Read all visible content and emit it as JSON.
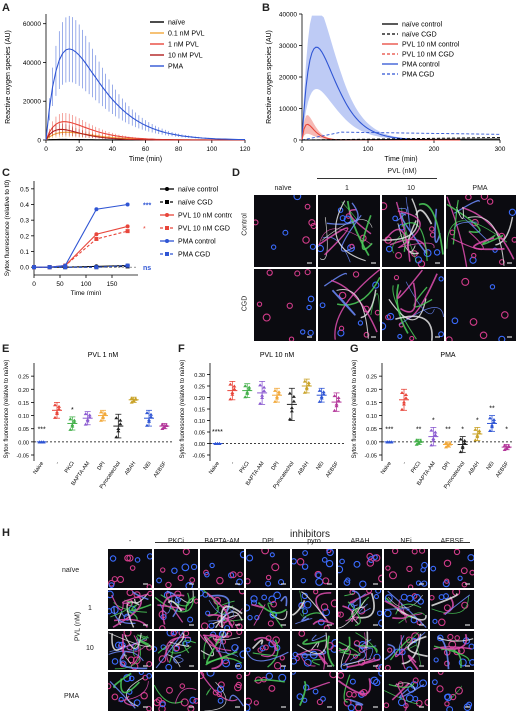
{
  "panel_labels": {
    "A": "A",
    "B": "B",
    "C": "C",
    "D": "D",
    "E": "E",
    "F": "F",
    "G": "G",
    "H": "H"
  },
  "colors": {
    "black": "#000000",
    "orange": "#f2a93b",
    "red": "#e8463b",
    "darkred": "#b01e1e",
    "blue": "#2f55d4",
    "lightblue": "#a8b9f2",
    "purple": "#8b5bd1",
    "green": "#43b04a",
    "gold": "#c9a227",
    "teal": "#3a9f8c",
    "magenta": "#b4379a"
  },
  "chart_data": [
    {
      "id": "A",
      "type": "line",
      "ylabel": "Reactive oxygen species (AU)",
      "xlabel": "Time (min)",
      "xlim": [
        0,
        120
      ],
      "ylim": [
        0,
        65000
      ],
      "xticks": [
        "0",
        "20",
        "40",
        "60",
        "80",
        "100",
        "120"
      ],
      "yticks": [
        "0",
        "20000",
        "40000",
        "60000"
      ],
      "legend": [
        "naïve",
        "0.1 nM PVL",
        "1 nM PVL",
        "10 nM PVL",
        "PMA"
      ],
      "series": [
        {
          "name": "naïve",
          "color": "#000000",
          "peak": 300,
          "tpeak": 10,
          "err": 300
        },
        {
          "name": "0.1 nM PVL",
          "color": "#f2a93b",
          "peak": 4000,
          "tpeak": 12,
          "err": 2500
        },
        {
          "name": "1 nM PVL",
          "color": "#e8463b",
          "peak": 9500,
          "tpeak": 11,
          "err": 4500
        },
        {
          "name": "10 nM PVL",
          "color": "#b01e1e",
          "peak": 5500,
          "tpeak": 9,
          "err": 3000
        },
        {
          "name": "PMA",
          "color": "#2f55d4",
          "peak": 47000,
          "tpeak": 14,
          "err": 17000
        }
      ]
    },
    {
      "id": "B",
      "type": "line",
      "ylabel": "Reactive oxygen species (AU)",
      "xlabel": "Time (min)",
      "xlim": [
        0,
        300
      ],
      "ylim": [
        0,
        40000
      ],
      "xticks": [
        "0",
        "100",
        "200",
        "300"
      ],
      "yticks": [
        "0",
        "10000",
        "20000",
        "30000",
        "40000"
      ],
      "legend": [
        "naïve control",
        "naïve CGD",
        "PVL 10 nM control",
        "PVL 10 nM CGD",
        "PMA control",
        "PMA CGD"
      ]
    },
    {
      "id": "C",
      "type": "line",
      "ylabel": "Sytox fluorescence (relative to t0)",
      "xlabel": "Time (min)",
      "xlim": [
        0,
        200
      ],
      "ylim": [
        -0.05,
        0.55
      ],
      "xticks": [
        "0",
        "50",
        "100",
        "150"
      ],
      "yticks": [
        "0.0",
        "0.1",
        "0.2",
        "0.3",
        "0.4",
        "0.5"
      ],
      "x": [
        0,
        30,
        60,
        120,
        180
      ],
      "series": [
        {
          "name": "naïve control",
          "color": "#000000",
          "dash": false,
          "values": [
            0,
            0,
            0,
            0.005,
            0.01
          ]
        },
        {
          "name": "naïve CGD",
          "color": "#000000",
          "dash": true,
          "values": [
            0,
            0,
            0,
            0,
            0.005
          ]
        },
        {
          "name": "PVL 10 nM control",
          "color": "#e8463b",
          "dash": false,
          "values": [
            0,
            0,
            0.01,
            0.21,
            0.26
          ]
        },
        {
          "name": "PVL 10 nM CGD",
          "color": "#e8463b",
          "dash": true,
          "values": [
            0,
            0,
            0.01,
            0.18,
            0.23
          ]
        },
        {
          "name": "PMA control",
          "color": "#2f55d4",
          "dash": false,
          "values": [
            0,
            0,
            0.01,
            0.37,
            0.4
          ]
        },
        {
          "name": "PMA CGD",
          "color": "#2f55d4",
          "dash": true,
          "values": [
            0,
            0,
            0,
            0,
            0.01
          ]
        }
      ],
      "annotations": [
        "***",
        "*",
        "ns"
      ]
    },
    {
      "id": "E",
      "type": "scatter",
      "title": "PVL 1 nM",
      "ylabel": "Sytox fluorescence (relative to naïve)",
      "ylim": [
        -0.05,
        0.3
      ],
      "yticks": [
        "-0.05",
        "0.00",
        "0.05",
        "0.10",
        "0.15",
        "0.20",
        "0.25"
      ],
      "categories": [
        "Naive",
        "-",
        "PKCi",
        "BAPTA-AM",
        "DPI",
        "Pyrocatechol",
        "ABAH",
        "NEi",
        "AEBSF"
      ],
      "means": [
        0.0,
        0.12,
        0.07,
        0.09,
        0.1,
        0.06,
        0.16,
        0.09,
        0.06
      ],
      "sds": [
        0.0,
        0.03,
        0.025,
        0.025,
        0.02,
        0.045,
        0.01,
        0.03,
        0.01
      ],
      "stars": [
        "***",
        "",
        "*",
        "",
        "",
        "",
        "",
        "",
        ""
      ]
    },
    {
      "id": "F",
      "type": "scatter",
      "title": "PVL 10 nM",
      "ylabel": "Sytox fluorescence (relative to naïve)",
      "ylim": [
        -0.05,
        0.35
      ],
      "yticks": [
        "-0.05",
        "0.00",
        "0.05",
        "0.10",
        "0.15",
        "0.20",
        "0.25",
        "0.30"
      ],
      "categories": [
        "Naive",
        "-",
        "PKCi",
        "BAPTA-AM",
        "DPI",
        "Pyrocatechol",
        "ABAH",
        "NEi",
        "AEBSF"
      ],
      "means": [
        0.0,
        0.23,
        0.23,
        0.22,
        0.21,
        0.17,
        0.25,
        0.21,
        0.18
      ],
      "sds": [
        0.0,
        0.04,
        0.03,
        0.05,
        0.03,
        0.07,
        0.03,
        0.03,
        0.04
      ],
      "stars": [
        "****",
        "",
        "",
        "",
        "",
        "",
        "",
        "",
        ""
      ]
    },
    {
      "id": "G",
      "type": "scatter",
      "title": "PMA",
      "ylabel": "Sytox fluorescence (relative to naïve)",
      "ylim": [
        -0.05,
        0.3
      ],
      "yticks": [
        "-0.05",
        "0.00",
        "0.05",
        "0.10",
        "0.15",
        "0.20",
        "0.25"
      ],
      "categories": [
        "Naive",
        "-",
        "PKCi",
        "BAPTA-AM",
        "DPI",
        "Pyrocatechol",
        "ABAH",
        "NEi",
        "AEBSF"
      ],
      "means": [
        0.0,
        0.16,
        0.0,
        0.02,
        -0.01,
        -0.01,
        0.03,
        0.07,
        -0.02
      ],
      "sds": [
        0.0,
        0.04,
        0.01,
        0.035,
        0.01,
        0.03,
        0.025,
        0.03,
        0.01
      ],
      "stars": [
        "***",
        "",
        "**",
        "*",
        "**",
        "*",
        "*",
        "**",
        "*"
      ]
    }
  ],
  "panel_D": {
    "header_top": "PVL (nM)",
    "col_headers": [
      "naïve",
      "1",
      "10",
      "PMA"
    ],
    "row_labels": [
      "Control",
      "CGD"
    ]
  },
  "panel_H": {
    "title": "inhibitors",
    "col_headers": [
      "-",
      "PKCi",
      "BAPTA-AM",
      "DPI",
      "pyro",
      "ABAH",
      "NEi",
      "AEBSF"
    ],
    "row_labels": [
      "naïve",
      "1",
      "10",
      "PMA"
    ],
    "axis_label": "PVL (nM)"
  }
}
